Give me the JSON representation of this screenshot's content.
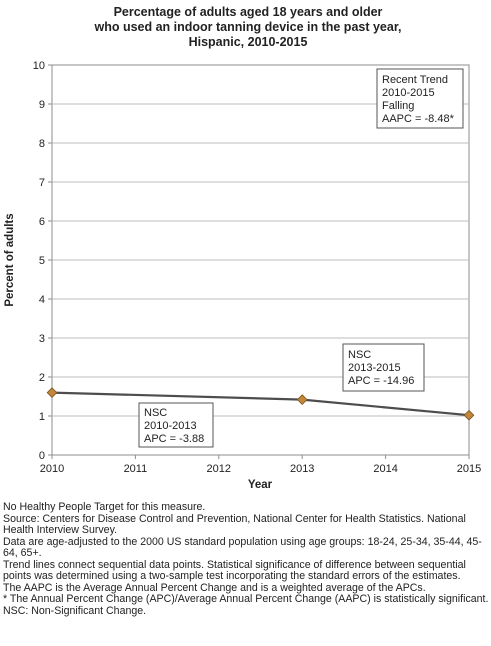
{
  "chart_data": {
    "type": "line",
    "title": [
      "Percentage of adults aged 18 years and older",
      "who used an indoor tanning device in the past year,",
      "Hispanic,  2010-2015"
    ],
    "xlabel": "Year",
    "ylabel": "Percent of adults",
    "xlim": [
      2010,
      2015
    ],
    "ylim": [
      0,
      10
    ],
    "x_ticks": [
      2010,
      2011,
      2012,
      2013,
      2014,
      2015
    ],
    "y_ticks": [
      0,
      1,
      2,
      3,
      4,
      5,
      6,
      7,
      8,
      9,
      10
    ],
    "grid": "horizontal",
    "series": [
      {
        "x": [
          2010,
          2013,
          2015
        ],
        "values": [
          1.6,
          1.42,
          1.02
        ],
        "color": "#c1873a",
        "line_color": "#4d4d4d"
      }
    ],
    "annotations": [
      {
        "lines": [
          "Recent Trend",
          "2010-2015",
          "Falling",
          "AAPC = -8.48*"
        ]
      },
      {
        "lines": [
          "NSC",
          "2013-2015",
          "APC = -14.96"
        ]
      },
      {
        "lines": [
          "NSC",
          "2010-2013",
          "APC = -3.88"
        ]
      }
    ]
  },
  "footnotes": [
    "No Healthy People Target for this measure.",
    "Source: Centers for Disease Control and Prevention, National Center for Health Statistics. National Health Interview Survey.",
    "Data are age-adjusted to the 2000 US standard population using age groups: 18-24, 25-34, 35-44, 45-64, 65+.",
    "Trend lines connect sequential data points. Statistical significance of difference between sequential points was determined using a two-sample test incorporating the standard errors of the estimates.",
    "The AAPC is the Average Annual Percent Change and is a weighted average of the APCs.",
    "* The Annual Percent Change (APC)/Average Annual Percent Change (AAPC) is statistically significant.",
    "NSC: Non-Significant Change."
  ]
}
